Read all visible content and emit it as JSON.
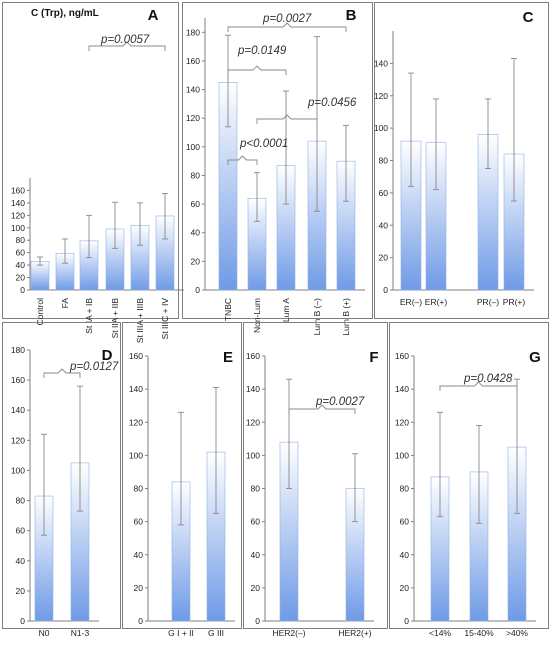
{
  "figure": {
    "ylabel": "C (Trp), ng/mL"
  },
  "colors": {
    "bar_top": "#ffffff",
    "bar_bottom": "#6f9ae6",
    "frame": "#7f7f7f",
    "whisker": "#888888"
  },
  "chart_data": [
    {
      "letter": "A",
      "type": "bar",
      "categories": [
        "Control",
        "FA",
        "St IA + IB",
        "St IIA + IIB",
        "St IIIA + IIIB",
        "St IIIC + IV"
      ],
      "values": [
        46,
        59,
        79,
        98,
        104,
        119
      ],
      "err_low": [
        40,
        43,
        52,
        67,
        72,
        82
      ],
      "err_high": [
        53,
        82,
        120,
        141,
        140,
        155
      ],
      "ylim": [
        0,
        180
      ],
      "yticks": [
        0,
        20,
        40,
        60,
        80,
        100,
        120,
        140,
        160
      ],
      "rotate_labels": true,
      "comparisons": [
        {
          "p": "p=0.0057",
          "from": 2,
          "to": 5
        }
      ]
    },
    {
      "letter": "B",
      "type": "bar",
      "categories": [
        "TNBC",
        "Non-Lum",
        "Lum A",
        "Lum B (–)",
        "Lum B (+)"
      ],
      "values": [
        145,
        64,
        87,
        104,
        90
      ],
      "err_low": [
        114,
        48,
        60,
        55,
        62
      ],
      "err_high": [
        178,
        82,
        139,
        177,
        115
      ],
      "ylim": [
        0,
        190
      ],
      "yticks": [
        0,
        20,
        40,
        60,
        80,
        100,
        120,
        140,
        160,
        180
      ],
      "rotate_labels": true,
      "comparisons": [
        {
          "p": "p=0.0027",
          "from": 0,
          "to": 4
        },
        {
          "p": "p=0.0149",
          "from": 0,
          "to": 2
        },
        {
          "p": "p=0.0456",
          "from": 1,
          "to": 3
        },
        {
          "p": "p<0.0001",
          "from": 0,
          "to": 1
        }
      ]
    },
    {
      "letter": "C",
      "type": "bar",
      "categories": [
        "ER(–)",
        "ER(+)",
        "PR(–)",
        "PR(+)"
      ],
      "values": [
        92,
        91,
        96,
        84
      ],
      "err_low": [
        64,
        62,
        75,
        55
      ],
      "err_high": [
        134,
        118,
        118,
        143
      ],
      "ylim": [
        0,
        160
      ],
      "yticks": [
        0,
        20,
        40,
        60,
        80,
        100,
        120,
        140
      ],
      "rotate_labels": false,
      "comparisons": []
    },
    {
      "letter": "D",
      "type": "bar",
      "categories": [
        "N0",
        "N1-3"
      ],
      "values": [
        83,
        105
      ],
      "err_low": [
        57,
        73
      ],
      "err_high": [
        124,
        156
      ],
      "ylim": [
        0,
        180
      ],
      "yticks": [
        0,
        20,
        40,
        60,
        80,
        100,
        120,
        140,
        160,
        180
      ],
      "rotate_labels": false,
      "comparisons": [
        {
          "p": "p=0.0127",
          "from": 0,
          "to": 1
        }
      ]
    },
    {
      "letter": "E",
      "type": "bar",
      "categories": [
        "G I + II",
        "G III"
      ],
      "values": [
        84,
        102
      ],
      "err_low": [
        58,
        65
      ],
      "err_high": [
        126,
        141
      ],
      "ylim": [
        0,
        160
      ],
      "yticks": [
        0,
        20,
        40,
        60,
        80,
        100,
        120,
        140,
        160
      ],
      "rotate_labels": false,
      "comparisons": []
    },
    {
      "letter": "F",
      "type": "bar",
      "categories": [
        "HER2(–)",
        "HER2(+)"
      ],
      "values": [
        108,
        80
      ],
      "err_low": [
        80,
        60
      ],
      "err_high": [
        146,
        101
      ],
      "ylim": [
        0,
        160
      ],
      "yticks": [
        0,
        20,
        40,
        60,
        80,
        100,
        120,
        140,
        160
      ],
      "rotate_labels": false,
      "comparisons": [
        {
          "p": "p=0.0027",
          "from": 0,
          "to": 1
        }
      ]
    },
    {
      "letter": "G",
      "type": "bar",
      "categories": [
        "<14%",
        "15-40%",
        ">40%"
      ],
      "values": [
        87,
        90,
        105
      ],
      "err_low": [
        63,
        59,
        65
      ],
      "err_high": [
        126,
        118,
        146
      ],
      "ylim": [
        0,
        160
      ],
      "yticks": [
        0,
        20,
        40,
        60,
        80,
        100,
        120,
        140,
        160
      ],
      "rotate_labels": false,
      "comparisons": [
        {
          "p": "p=0.0428",
          "from": 0,
          "to": 2
        }
      ]
    }
  ]
}
